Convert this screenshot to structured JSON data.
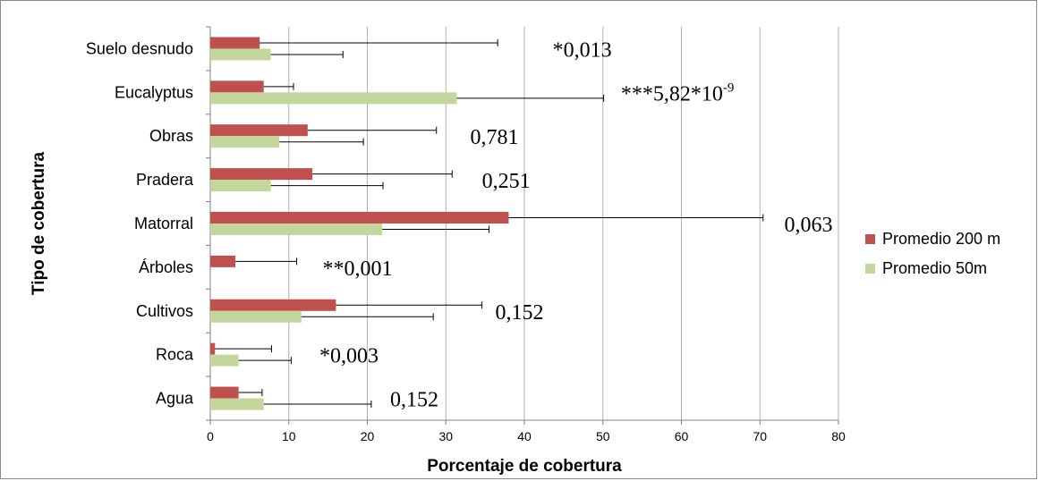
{
  "chart_data": {
    "type": "bar",
    "orientation": "horizontal",
    "categories": [
      "Suelo desnudo",
      "Eucalyptus",
      "Obras",
      "Pradera",
      "Matorral",
      "Árboles",
      "Cultivos",
      "Roca",
      "Agua"
    ],
    "series": [
      {
        "name": "Promedio 200 m",
        "color": "#c0504d",
        "values": [
          6.3,
          6.8,
          12.4,
          13.0,
          38.0,
          3.2,
          16.0,
          0.6,
          3.6
        ],
        "error_upper": [
          36.6,
          10.6,
          28.8,
          30.8,
          70.4,
          11.0,
          34.6,
          7.8,
          6.6
        ]
      },
      {
        "name": "Promedio 50m",
        "color": "#c3d69b",
        "values": [
          7.7,
          31.4,
          8.8,
          7.7,
          21.9,
          0,
          11.6,
          3.6,
          6.8
        ],
        "error_upper": [
          16.9,
          50.1,
          19.5,
          22.0,
          35.5,
          0,
          28.4,
          10.3,
          20.5
        ]
      }
    ],
    "annotations": [
      {
        "text": "*0,013",
        "category": "Suelo desnudo",
        "x": 43.6
      },
      {
        "text": "***5,82*10",
        "superscript": "-9",
        "category": "Eucalyptus",
        "x": 52.3
      },
      {
        "text": "0,781",
        "category": "Obras",
        "x": 33.1
      },
      {
        "text": "0,251",
        "category": "Pradera",
        "x": 34.6
      },
      {
        "text": "0,063",
        "category": "Matorral",
        "x": 73.1
      },
      {
        "text": "**0,001",
        "category": "Árboles",
        "x": 14.3
      },
      {
        "text": "0,152",
        "category": "Cultivos",
        "x": 36.3
      },
      {
        "text": "*0,003",
        "category": "Roca",
        "x": 13.9
      },
      {
        "text": "0,152",
        "category": "Agua",
        "x": 22.9
      }
    ],
    "xticks": [
      "0",
      "10",
      "20",
      "30",
      "40",
      "50",
      "60",
      "70",
      "80"
    ],
    "xlim": [
      0,
      80
    ],
    "xlabel": "Porcentaje de cobertura",
    "ylabel": "Tipo de cobertura",
    "title": "",
    "grid": "vertical",
    "legend_position": "right"
  }
}
